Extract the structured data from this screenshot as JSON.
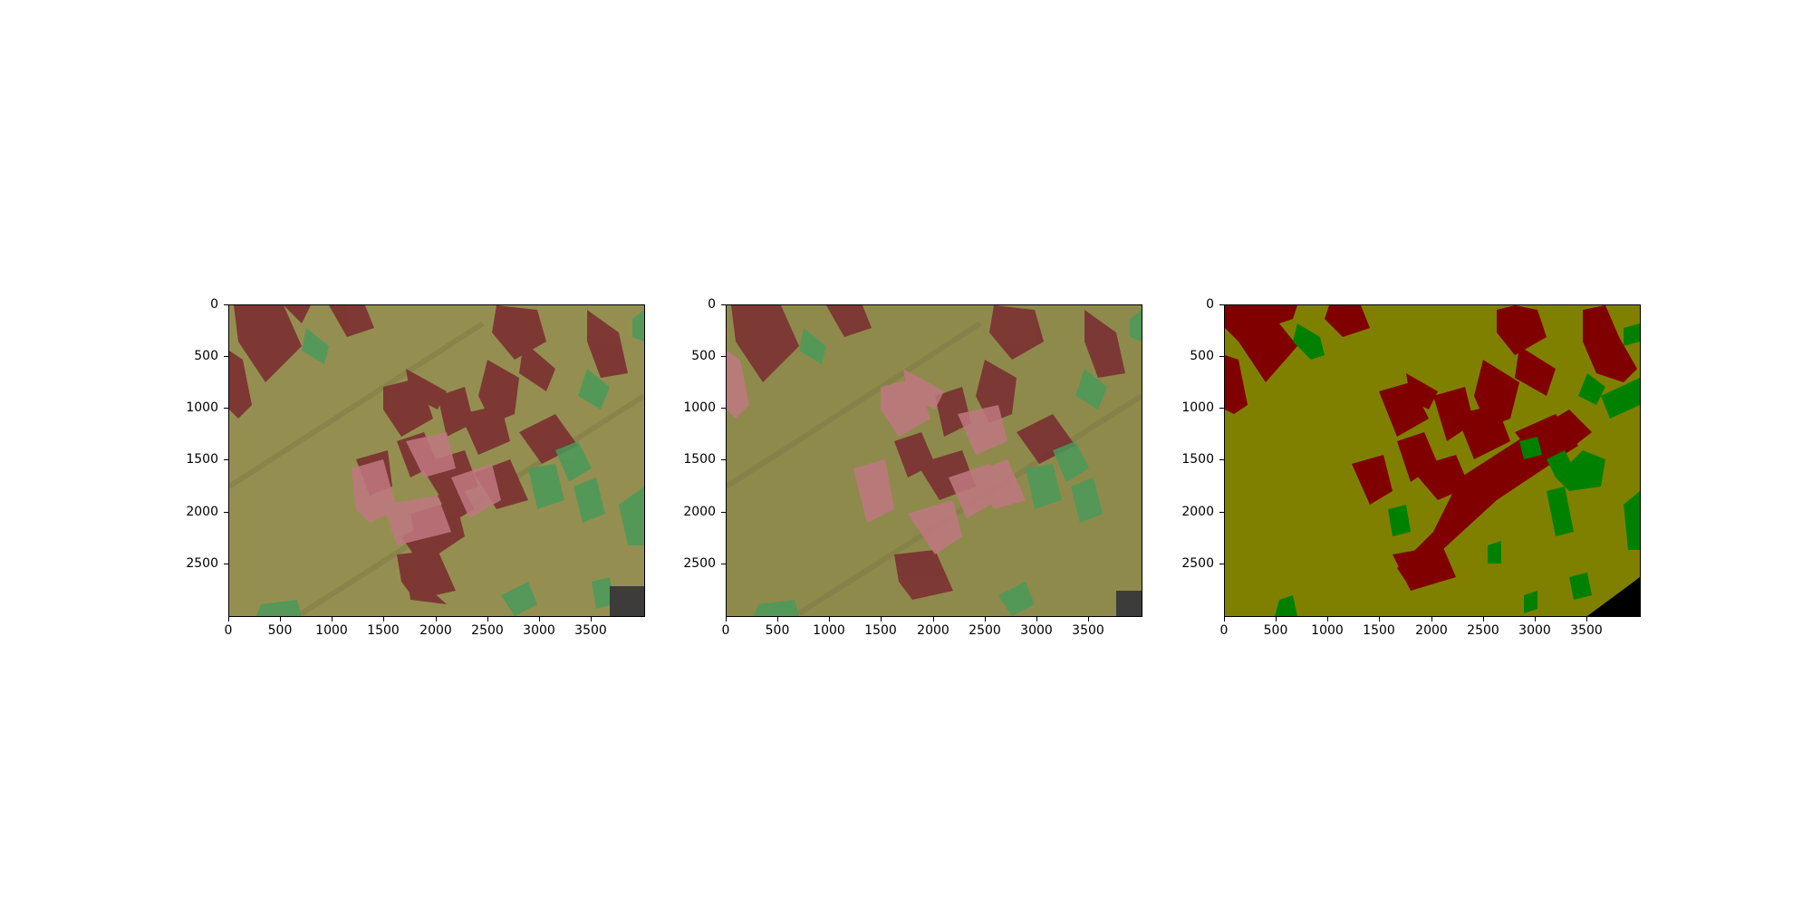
{
  "figure": {
    "panels": [
      {
        "id": "overlay-1",
        "kind": "image-with-mask-overlay"
      },
      {
        "id": "overlay-2",
        "kind": "image-with-mask-overlay"
      },
      {
        "id": "mask",
        "kind": "segmentation-mask"
      }
    ],
    "x_ticks": [
      "0",
      "500",
      "1000",
      "1500",
      "2000",
      "2500",
      "3000",
      "3500"
    ],
    "y_ticks": [
      "0",
      "500",
      "1000",
      "1500",
      "2000",
      "2500"
    ],
    "x_range": [
      0,
      4000
    ],
    "y_range": [
      0,
      3000
    ],
    "colors": {
      "background_class": "#808000",
      "building_class": "#800000",
      "vegetation_class": "#008000",
      "nodata": "#000000"
    }
  }
}
